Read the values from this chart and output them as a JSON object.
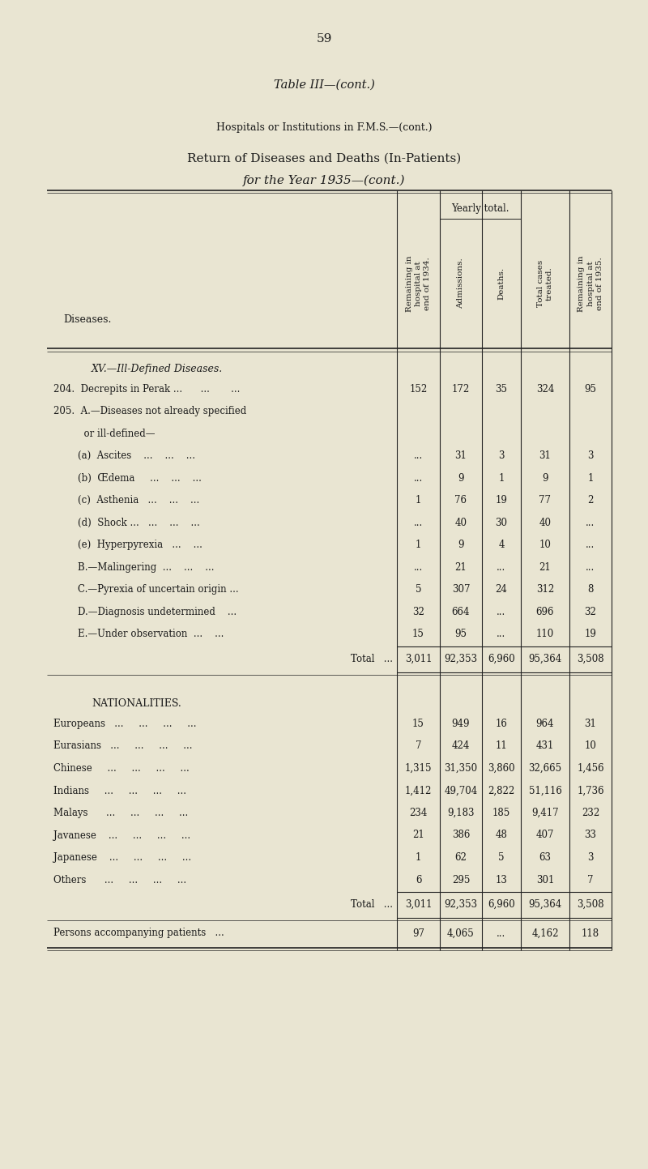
{
  "page_number": "59",
  "title1": "Table III—(cont.)",
  "title2": "Hospitals or Institutions in F.M.S.—(cont.)",
  "title3": "Return of Diseases and Deaths (In-Patients)",
  "title4": "for the Year 1935—(cont.)",
  "yearly_total_label": "Yearly total.",
  "diseases_label": "Diseases.",
  "section_header": "XV.—Ill-Defined Diseases.",
  "nationalities_header": "NATIONALITIES.",
  "total_label": "Total",
  "persons_label": "Persons accompanying patients",
  "rows_diseases": [
    {
      "label": "204.  Decrepits in Perak ...      ...       ...",
      "c1": "152",
      "c2": "172",
      "c3": "35",
      "c4": "324",
      "c5": "95"
    },
    {
      "label": "205.  A.—Diseases not already specified",
      "c1": "",
      "c2": "",
      "c3": "",
      "c4": "",
      "c5": ""
    },
    {
      "label": "          or ill-defined—",
      "c1": "",
      "c2": "",
      "c3": "",
      "c4": "",
      "c5": ""
    },
    {
      "label": "        (a)  Ascites    ...    ...    ...",
      "c1": "...",
      "c2": "31",
      "c3": "3",
      "c4": "31",
      "c5": "3"
    },
    {
      "label": "        (b)  Œdema     ...    ...    ...",
      "c1": "...",
      "c2": "9",
      "c3": "1",
      "c4": "9",
      "c5": "1"
    },
    {
      "label": "        (c)  Asthenia   ...    ...    ...",
      "c1": "1",
      "c2": "76",
      "c3": "19",
      "c4": "77",
      "c5": "2"
    },
    {
      "label": "        (d)  Shock ...   ...    ...    ...",
      "c1": "...",
      "c2": "40",
      "c3": "30",
      "c4": "40",
      "c5": "..."
    },
    {
      "label": "        (e)  Hyperpyrexia   ...    ...",
      "c1": "1",
      "c2": "9",
      "c3": "4",
      "c4": "10",
      "c5": "..."
    },
    {
      "label": "        B.—Malingering  ...    ...    ...",
      "c1": "...",
      "c2": "21",
      "c3": "...",
      "c4": "21",
      "c5": "..."
    },
    {
      "label": "        C.—Pyrexia of uncertain origin ...",
      "c1": "5",
      "c2": "307",
      "c3": "24",
      "c4": "312",
      "c5": "8"
    },
    {
      "label": "        D.—Diagnosis undetermined    ...",
      "c1": "32",
      "c2": "664",
      "c3": "...",
      "c4": "696",
      "c5": "32"
    },
    {
      "label": "        E.—Under observation  ...    ...",
      "c1": "15",
      "c2": "95",
      "c3": "...",
      "c4": "110",
      "c5": "19"
    }
  ],
  "total_row": {
    "c1": "3,011",
    "c2": "92,353",
    "c3": "6,960",
    "c4": "95,364",
    "c5": "3,508"
  },
  "rows_nationalities": [
    {
      "label": "Europeans   ...     ...     ...     ...",
      "c1": "15",
      "c2": "949",
      "c3": "16",
      "c4": "964",
      "c5": "31"
    },
    {
      "label": "Eurasians   ...     ...     ...     ...",
      "c1": "7",
      "c2": "424",
      "c3": "11",
      "c4": "431",
      "c5": "10"
    },
    {
      "label": "Chinese     ...     ...     ...     ...",
      "c1": "1,315",
      "c2": "31,350",
      "c3": "3,860",
      "c4": "32,665",
      "c5": "1,456"
    },
    {
      "label": "Indians     ...     ...     ...     ...",
      "c1": "1,412",
      "c2": "49,704",
      "c3": "2,822",
      "c4": "51,116",
      "c5": "1,736"
    },
    {
      "label": "Malays      ...     ...     ...     ...",
      "c1": "234",
      "c2": "9,183",
      "c3": "185",
      "c4": "9,417",
      "c5": "232"
    },
    {
      "label": "Javanese    ...     ...     ...     ...",
      "c1": "21",
      "c2": "386",
      "c3": "48",
      "c4": "407",
      "c5": "33"
    },
    {
      "label": "Japanese    ...     ...     ...     ...",
      "c1": "1",
      "c2": "62",
      "c3": "5",
      "c4": "63",
      "c5": "3"
    },
    {
      "label": "Others      ...     ...     ...     ...",
      "c1": "6",
      "c2": "295",
      "c3": "13",
      "c4": "301",
      "c5": "7"
    }
  ],
  "total_row2": {
    "c1": "3,011",
    "c2": "92,353",
    "c3": "6,960",
    "c4": "95,364",
    "c5": "3,508"
  },
  "persons_row": {
    "c1": "97",
    "c2": "4,065",
    "c3": "...",
    "c4": "4,162",
    "c5": "118"
  },
  "bg_color": "#e9e5d2",
  "text_color": "#1a1a1a",
  "line_color": "#222222"
}
